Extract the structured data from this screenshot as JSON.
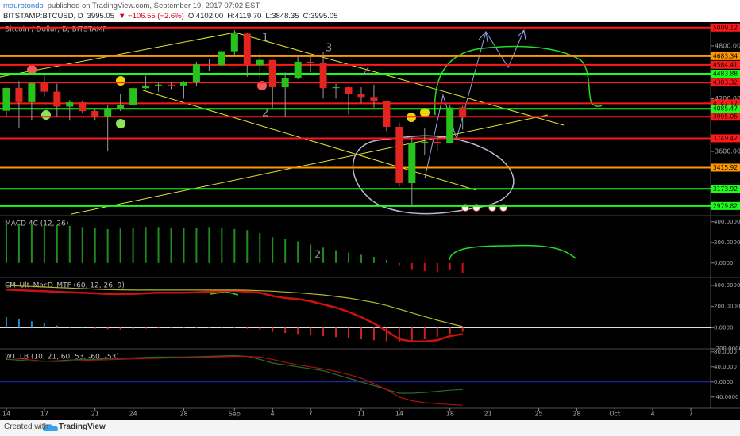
{
  "header": {
    "author": "maurotondo",
    "published": "published on TradingView.com, September 19, 2017 07:02 EST",
    "symbol": "BITSTAMP:BTCUSD, D",
    "last": "3995.05",
    "change": "▼ −106.55 (−2.6%)",
    "open": "O:4102.00",
    "high": "H:4119.70",
    "low": "L:3848.35",
    "close": "C:3995.05"
  },
  "chart_data": {
    "type": "candlestick",
    "title": "Bitcoin / Dollar, D, BITSTAMP",
    "up_color": "#26c41a",
    "down_color": "#e3241f",
    "grid": false,
    "x": [
      "2017-08-14",
      "2017-08-15",
      "2017-08-16",
      "2017-08-17",
      "2017-08-18",
      "2017-08-19",
      "2017-08-20",
      "2017-08-21",
      "2017-08-22",
      "2017-08-23",
      "2017-08-24",
      "2017-08-25",
      "2017-08-26",
      "2017-08-27",
      "2017-08-28",
      "2017-08-29",
      "2017-08-30",
      "2017-08-31",
      "2017-09-01",
      "2017-09-02",
      "2017-09-03",
      "2017-09-04",
      "2017-09-05",
      "2017-09-06",
      "2017-09-07",
      "2017-09-08",
      "2017-09-09",
      "2017-09-10",
      "2017-09-11",
      "2017-09-12",
      "2017-09-13",
      "2017-09-14",
      "2017-09-15",
      "2017-09-16",
      "2017-09-17",
      "2017-09-18",
      "2017-09-19"
    ],
    "open": [
      4063,
      4322,
      4160,
      4375,
      4280,
      4110,
      4160,
      4060,
      4000,
      4080,
      4130,
      4320,
      4350,
      4360,
      4350,
      4390,
      4590,
      4580,
      4740,
      4940,
      4580,
      4640,
      4330,
      4430,
      4620,
      4610,
      4320,
      4330,
      4250,
      4220,
      4170,
      3880,
      3240,
      3690,
      3710,
      3690,
      4102
    ],
    "high": [
      4325,
      4400,
      4380,
      4480,
      4370,
      4185,
      4180,
      4090,
      4130,
      4250,
      4340,
      4460,
      4380,
      4390,
      4400,
      4620,
      4645,
      4760,
      4980,
      4950,
      4720,
      4640,
      4500,
      4680,
      4680,
      4730,
      4370,
      4340,
      4330,
      4360,
      4170,
      3930,
      3760,
      3870,
      3790,
      4130,
      4119.7
    ],
    "low": [
      3990,
      3860,
      3950,
      4225,
      4000,
      3950,
      4040,
      3950,
      3600,
      4060,
      4110,
      4310,
      4280,
      4310,
      4200,
      4340,
      4520,
      4570,
      4700,
      4450,
      4440,
      4100,
      4000,
      4420,
      4500,
      4200,
      4200,
      4020,
      4150,
      4100,
      3830,
      3200,
      2980,
      3560,
      3600,
      3690,
      3848.35
    ],
    "close": [
      4322,
      4160,
      4375,
      4280,
      4110,
      4160,
      4060,
      4000,
      4080,
      4130,
      4320,
      4350,
      4360,
      4350,
      4390,
      4590,
      4580,
      4740,
      4940,
      4580,
      4640,
      4330,
      4430,
      4620,
      4610,
      4320,
      4330,
      4250,
      4220,
      4170,
      3880,
      3240,
      3700,
      3710,
      3690,
      4100,
      3995.05
    ],
    "ylim": [
      2870,
      5070
    ],
    "yticks": [
      {
        "value": 3600,
        "label": "3600.00"
      },
      {
        "value": 4200,
        "label": "4200.00"
      },
      {
        "value": 4800,
        "label": "4800.00"
      }
    ],
    "xlim": [
      "2017-08-13",
      "2017-10-08"
    ],
    "xticks": [
      {
        "value": "2017-08-14",
        "label": "14"
      },
      {
        "value": "2017-08-17",
        "label": "17"
      },
      {
        "value": "2017-08-21",
        "label": "21"
      },
      {
        "value": "2017-08-24",
        "label": "24"
      },
      {
        "value": "2017-08-28",
        "label": "28"
      },
      {
        "value": "2017-09-01",
        "label": "Sep"
      },
      {
        "value": "2017-09-04",
        "label": "4"
      },
      {
        "value": "2017-09-07",
        "label": "7"
      },
      {
        "value": "2017-09-11",
        "label": "11"
      },
      {
        "value": "2017-09-14",
        "label": "14"
      },
      {
        "value": "2017-09-18",
        "label": "18"
      },
      {
        "value": "2017-09-21",
        "label": "21"
      },
      {
        "value": "2017-09-25",
        "label": "25"
      },
      {
        "value": "2017-09-28",
        "label": "28"
      },
      {
        "value": "2017-10-01",
        "label": "Oct"
      },
      {
        "value": "2017-10-04",
        "label": "4"
      },
      {
        "value": "2017-10-07",
        "label": "7"
      }
    ],
    "levels": [
      {
        "value": 5009.12,
        "color": "#ff1a1a"
      },
      {
        "value": 4683.34,
        "color": "#ff9800"
      },
      {
        "value": 4584.41,
        "color": "#ff1a1a"
      },
      {
        "value": 4483.88,
        "color": "#1aff1a"
      },
      {
        "value": 4383.32,
        "color": "#ff1a1a"
      },
      {
        "value": 4147.17,
        "color": "#ff1a1a"
      },
      {
        "value": 4085.47,
        "color": "#1aff1a"
      },
      {
        "value": 3995.05,
        "color": "#ff1a1a"
      },
      {
        "value": 3749.42,
        "color": "#ff1a1a"
      },
      {
        "value": 3415.92,
        "color": "#ff9800"
      },
      {
        "value": 3173.92,
        "color": "#1aff1a"
      },
      {
        "value": 2979.82,
        "color": "#1aff1a"
      }
    ],
    "annotations": [
      "1",
      "2",
      "3",
      "4"
    ],
    "indicators": [
      {
        "type": "bar",
        "title": "MACD 4C (12, 26)",
        "up_color": "#1e8f1e",
        "down_color": "#cc1111",
        "values": [
          380,
          385,
          380,
          375,
          370,
          360,
          350,
          340,
          330,
          335,
          340,
          350,
          350,
          345,
          340,
          345,
          350,
          340,
          330,
          320,
          290,
          250,
          230,
          210,
          180,
          150,
          125,
          100,
          80,
          60,
          30,
          -20,
          -60,
          -80,
          -90,
          -70,
          -100
        ],
        "ylim": [
          -140,
          460
        ],
        "yticks": [
          {
            "value": 0,
            "label": "0.0000"
          },
          {
            "value": 200,
            "label": "200.0000"
          },
          {
            "value": 400,
            "label": "400.0000"
          }
        ],
        "annotations": [
          "2"
        ]
      },
      {
        "type": "line",
        "title": "CM_Ult_MacD_MTF (60, 12, 26, 9)",
        "zero_color": "#ffffff",
        "series": [
          {
            "color": "#cc1111",
            "values": [
              360,
              355,
              350,
              345,
              340,
              335,
              330,
              325,
              320,
              318,
              320,
              325,
              330,
              330,
              330,
              335,
              340,
              345,
              350,
              340,
              330,
              300,
              280,
              270,
              250,
              220,
              190,
              150,
              100,
              40,
              -30,
              -110,
              -130,
              -130,
              -120,
              -80,
              -60
            ]
          },
          {
            "color": "#b5b52a",
            "values": [
              400,
              395,
              390,
              385,
              380,
              375,
              370,
              365,
              360,
              358,
              356,
              356,
              356,
              356,
              356,
              356,
              356,
              356,
              356,
              354,
              350,
              345,
              338,
              330,
              320,
              310,
              295,
              280,
              260,
              238,
              210,
              175,
              140,
              105,
              70,
              40,
              10
            ]
          }
        ],
        "histogram": {
          "up_color": "#1a8fd8",
          "down_color": "#cc2222",
          "values": [
            100,
            80,
            60,
            40,
            20,
            10,
            5,
            -10,
            -15,
            -20,
            -15,
            -10,
            -5,
            -5,
            -5,
            -5,
            -5,
            -5,
            -5,
            -10,
            -20,
            -40,
            -50,
            -60,
            -70,
            -80,
            -90,
            -100,
            -110,
            -120,
            -130,
            -140,
            -130,
            -110,
            -90,
            -60,
            -40
          ]
        },
        "ylim": [
          -200,
          475
        ],
        "yticks": [
          {
            "value": -200,
            "label": "-200.0000"
          },
          {
            "value": 0,
            "label": "0.0000"
          },
          {
            "value": 200,
            "label": "200.0000"
          },
          {
            "value": 400,
            "label": "400.0000"
          }
        ]
      },
      {
        "type": "line",
        "title": "WT_LB (10, 21, 60, 53, -60, -53)",
        "zero_color": "#2a2acc",
        "series": [
          {
            "color": "#2a6a2a",
            "values": [
              60,
              58,
              55,
              55,
              56,
              58,
              60,
              60,
              62,
              63,
              64,
              65,
              66,
              66,
              66,
              67,
              68,
              69,
              70,
              68,
              60,
              50,
              45,
              40,
              35,
              30,
              20,
              10,
              0,
              -10,
              -20,
              -30,
              -30,
              -28,
              -25,
              -22,
              -20
            ]
          },
          {
            "color": "#aa1111",
            "values": [
              65,
              62,
              58,
              55,
              54,
              55,
              57,
              58,
              59,
              60,
              61,
              62,
              63,
              64,
              65,
              65,
              66,
              67,
              68,
              68,
              66,
              60,
              52,
              45,
              40,
              35,
              28,
              20,
              10,
              -5,
              -20,
              -40,
              -50,
              -55,
              -58,
              -60,
              -62
            ]
          }
        ],
        "ylim": [
          -70,
          88
        ],
        "yticks": [
          {
            "value": -40,
            "label": "-40.0000"
          },
          {
            "value": 0,
            "label": "0.0000"
          },
          {
            "value": 40,
            "label": "40.0000"
          },
          {
            "value": 80,
            "label": "80.0000"
          }
        ]
      }
    ]
  },
  "footer": {
    "created": "Created with",
    "brand": "TradingView"
  }
}
